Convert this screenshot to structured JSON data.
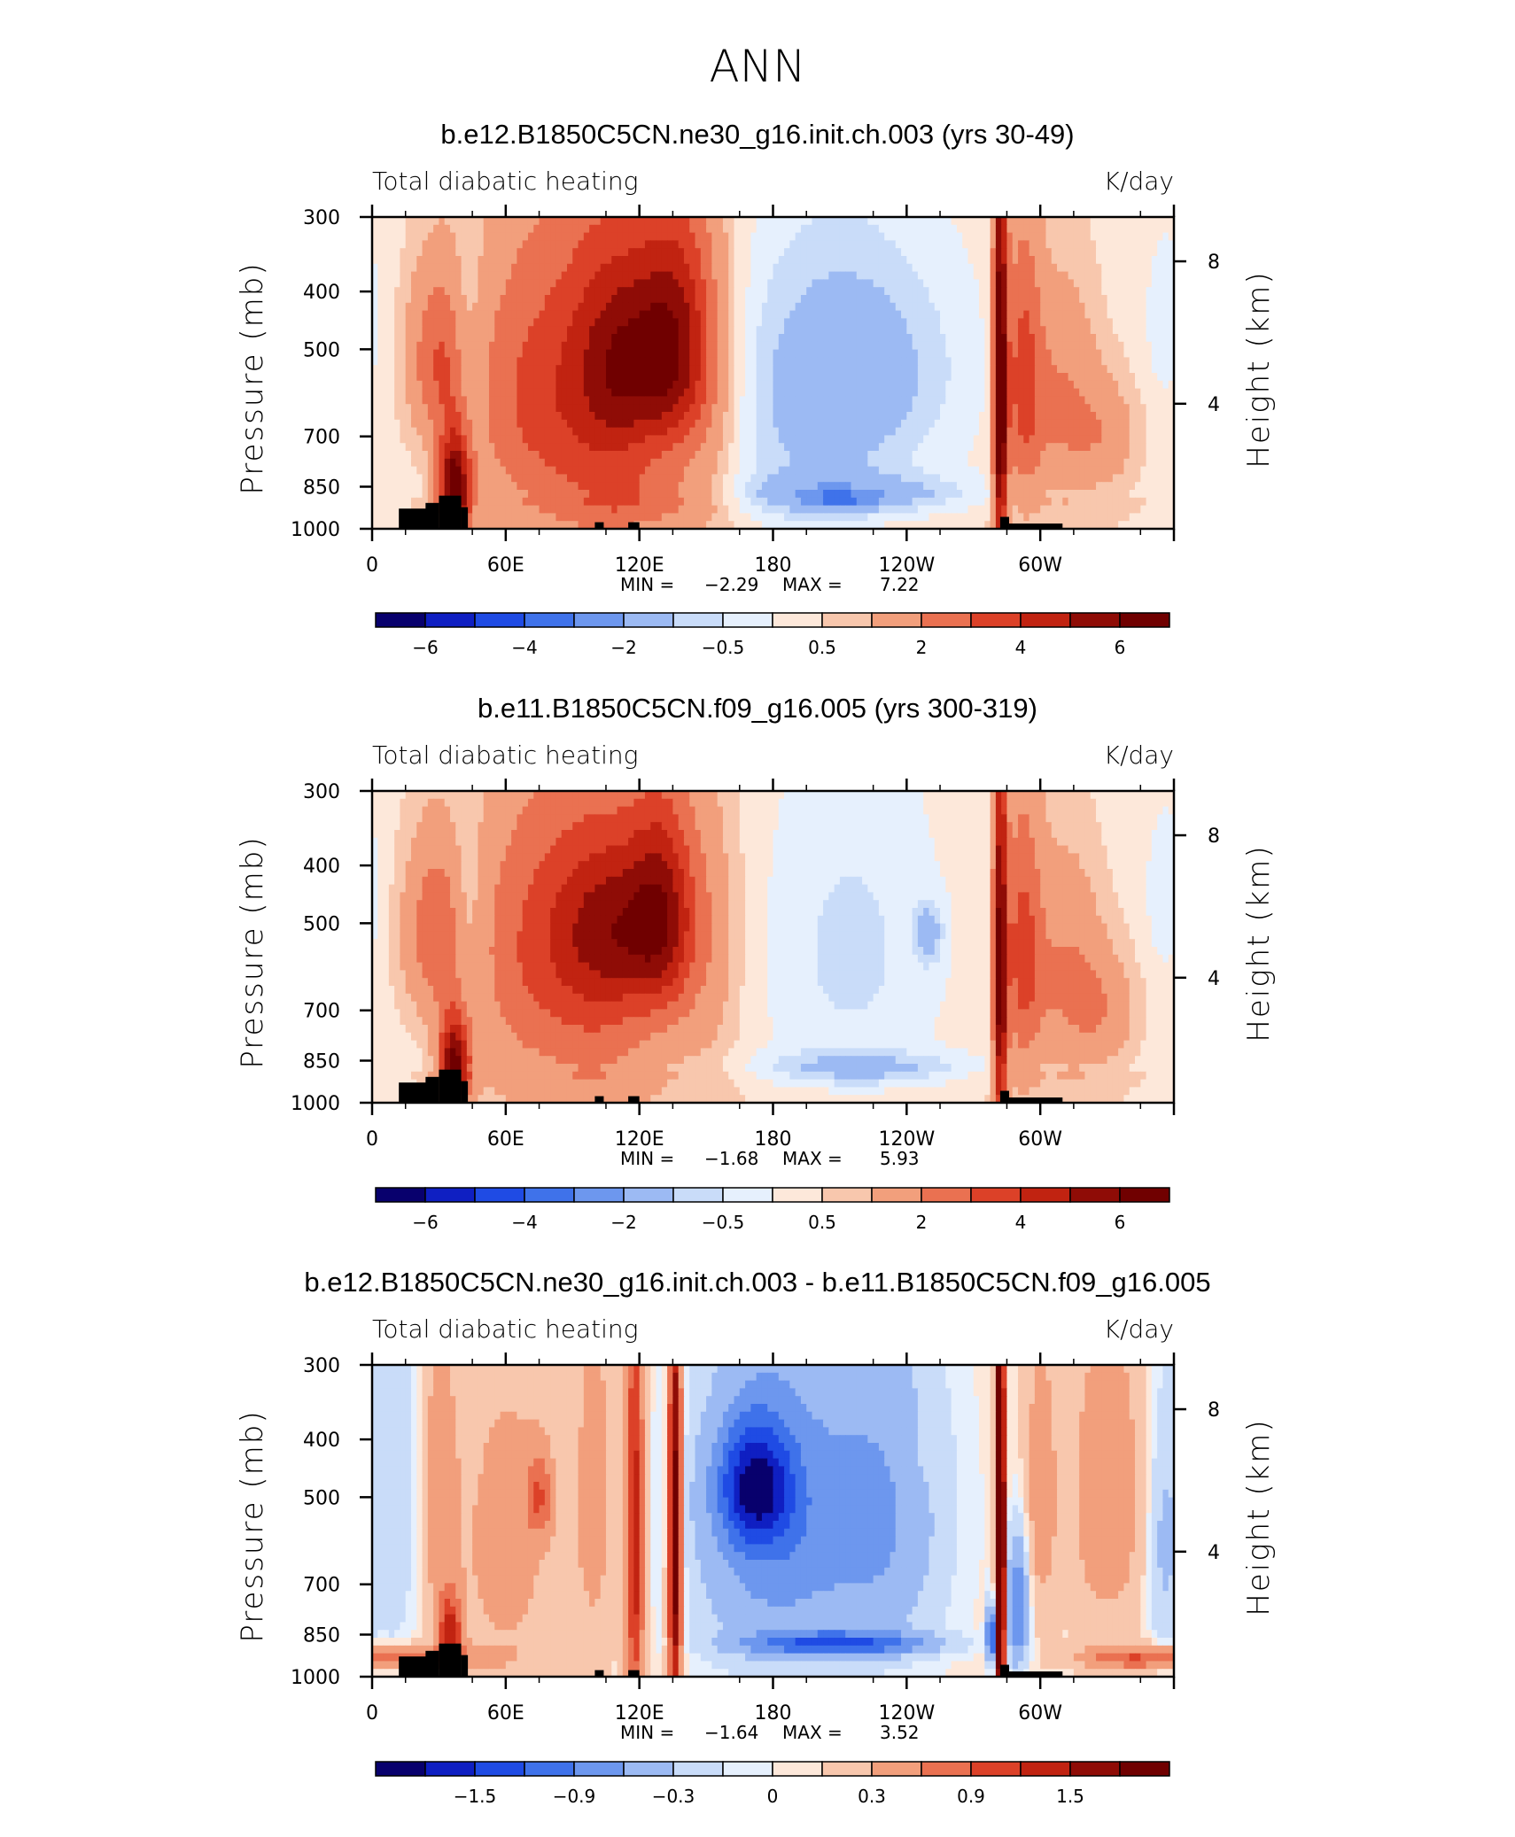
{
  "figure_title": "ANN",
  "chart_data": [
    {
      "type": "heatmap",
      "title": "b.e12.B1850C5CN.ne30_g16.init.ch.003 (yrs 30-49)",
      "left_label": "Total diabatic heating",
      "right_label": "K/day",
      "ylabel": "Pressure (mb)",
      "ylabel_right": "Height (km)",
      "x_ticks": [
        "0",
        "60E",
        "120E",
        "180",
        "120W",
        "60W"
      ],
      "y_ticks": [
        "300",
        "400",
        "500",
        "700",
        "850",
        "1000"
      ],
      "y2_ticks": [
        "8",
        "4"
      ],
      "xlim": [
        0,
        360
      ],
      "ylim": [
        1000,
        300
      ],
      "min_label": "MIN =",
      "min_value": "−2.29",
      "max_label": "MAX =",
      "max_value": "7.22",
      "colorbar_labels": [
        "−6",
        "−4",
        "−2",
        "−0.5",
        "0.5",
        "2",
        "4",
        "6"
      ],
      "features": [
        {
          "lon": 30,
          "p": 520,
          "w": 14,
          "h": 180,
          "v": 2.5
        },
        {
          "lon": 37,
          "p": 860,
          "w": 7,
          "h": 180,
          "v": 6.5
        },
        {
          "lon": 43,
          "p": 500,
          "w": 7,
          "h": 220,
          "v": -1.0
        },
        {
          "lon": 70,
          "p": 600,
          "w": 28,
          "h": 360,
          "v": 2.6
        },
        {
          "lon": 105,
          "p": 600,
          "w": 26,
          "h": 420,
          "v": 2.7
        },
        {
          "lon": 118,
          "p": 520,
          "w": 24,
          "h": 210,
          "v": 3.4
        },
        {
          "lon": 136,
          "p": 480,
          "w": 16,
          "h": 230,
          "v": 3.2
        },
        {
          "lon": 125,
          "p": 900,
          "w": 30,
          "h": 100,
          "v": 1.3
        },
        {
          "lon": 150,
          "p": 560,
          "w": 16,
          "h": 400,
          "v": 1.2
        },
        {
          "lon": 220,
          "p": 540,
          "w": 44,
          "h": 230,
          "v": -1.5
        },
        {
          "lon": 215,
          "p": 880,
          "w": 52,
          "h": 70,
          "v": -1.7
        },
        {
          "lon": 210,
          "p": 890,
          "w": 14,
          "h": 18,
          "v": -2.3
        },
        {
          "lon": 196,
          "p": 700,
          "w": 40,
          "h": 400,
          "v": -0.9
        },
        {
          "lon": 282,
          "p": 600,
          "w": 3,
          "h": 500,
          "v": 7.0
        },
        {
          "lon": 292,
          "p": 560,
          "w": 9,
          "h": 300,
          "v": 3.0
        },
        {
          "lon": 310,
          "p": 620,
          "w": 16,
          "h": 260,
          "v": 1.8
        },
        {
          "lon": 330,
          "p": 700,
          "w": 14,
          "h": 150,
          "v": 1.3
        },
        {
          "lon": 356,
          "p": 450,
          "w": 8,
          "h": 130,
          "v": -0.7
        }
      ]
    },
    {
      "type": "heatmap",
      "title": "b.e11.B1850C5CN.f09_g16.005 (yrs 300-319)",
      "left_label": "Total diabatic heating",
      "right_label": "K/day",
      "ylabel": "Pressure (mb)",
      "ylabel_right": "Height (km)",
      "x_ticks": [
        "0",
        "60E",
        "120E",
        "180",
        "120W",
        "60W"
      ],
      "y_ticks": [
        "300",
        "400",
        "500",
        "700",
        "850",
        "1000"
      ],
      "y2_ticks": [
        "8",
        "4"
      ],
      "xlim": [
        0,
        360
      ],
      "ylim": [
        1000,
        300
      ],
      "min_label": "MIN =",
      "min_value": "−1.68",
      "max_label": "MAX =",
      "max_value": "5.93",
      "colorbar_labels": [
        "−6",
        "−4",
        "−2",
        "−0.5",
        "0.5",
        "2",
        "4",
        "6"
      ],
      "features": [
        {
          "lon": 28,
          "p": 520,
          "w": 14,
          "h": 180,
          "v": 2.4
        },
        {
          "lon": 37,
          "p": 860,
          "w": 7,
          "h": 160,
          "v": 5.9
        },
        {
          "lon": 43,
          "p": 500,
          "w": 7,
          "h": 220,
          "v": -0.9
        },
        {
          "lon": 70,
          "p": 560,
          "w": 28,
          "h": 360,
          "v": 2.3
        },
        {
          "lon": 112,
          "p": 500,
          "w": 30,
          "h": 170,
          "v": 3.2
        },
        {
          "lon": 130,
          "p": 480,
          "w": 14,
          "h": 220,
          "v": 3.0
        },
        {
          "lon": 105,
          "p": 620,
          "w": 26,
          "h": 400,
          "v": 2.2
        },
        {
          "lon": 150,
          "p": 560,
          "w": 16,
          "h": 400,
          "v": 1.0
        },
        {
          "lon": 215,
          "p": 560,
          "w": 38,
          "h": 330,
          "v": -0.9
        },
        {
          "lon": 250,
          "p": 520,
          "w": 6,
          "h": 60,
          "v": -1.5
        },
        {
          "lon": 220,
          "p": 880,
          "w": 46,
          "h": 60,
          "v": -1.4
        },
        {
          "lon": 282,
          "p": 620,
          "w": 3,
          "h": 500,
          "v": 5.9
        },
        {
          "lon": 292,
          "p": 560,
          "w": 9,
          "h": 300,
          "v": 3.0
        },
        {
          "lon": 312,
          "p": 620,
          "w": 16,
          "h": 260,
          "v": 1.8
        },
        {
          "lon": 330,
          "p": 700,
          "w": 14,
          "h": 150,
          "v": 1.3
        },
        {
          "lon": 356,
          "p": 450,
          "w": 8,
          "h": 130,
          "v": -0.7
        }
      ]
    },
    {
      "type": "heatmap",
      "title": "b.e12.B1850C5CN.ne30_g16.init.ch.003 - b.e11.B1850C5CN.f09_g16.005",
      "left_label": "Total diabatic heating",
      "right_label": "K/day",
      "ylabel": "Pressure (mb)",
      "ylabel_right": "Height (km)",
      "x_ticks": [
        "0",
        "60E",
        "120E",
        "180",
        "120W",
        "60W"
      ],
      "y_ticks": [
        "300",
        "400",
        "500",
        "700",
        "850",
        "1000"
      ],
      "y2_ticks": [
        "8",
        "4"
      ],
      "xlim": [
        0,
        360
      ],
      "ylim": [
        1000,
        300
      ],
      "min_label": "MIN =",
      "min_value": "−1.64",
      "max_label": "MAX =",
      "max_value": "3.52",
      "colorbar_labels": [
        "−1.5",
        "−0.9",
        "−0.3",
        "0",
        "0.3",
        "0.9",
        "1.5"
      ],
      "features": [
        {
          "lon": 10,
          "p": 500,
          "w": 10,
          "h": 400,
          "v": -0.35
        },
        {
          "lon": 30,
          "p": 500,
          "w": 8,
          "h": 300,
          "v": 0.4
        },
        {
          "lon": 35,
          "p": 850,
          "w": 5,
          "h": 120,
          "v": 1.3
        },
        {
          "lon": 60,
          "p": 600,
          "w": 24,
          "h": 420,
          "v": 0.35
        },
        {
          "lon": 75,
          "p": 500,
          "w": 6,
          "h": 80,
          "v": 0.7
        },
        {
          "lon": 100,
          "p": 500,
          "w": 10,
          "h": 400,
          "v": 0.35
        },
        {
          "lon": 118,
          "p": 600,
          "w": 4,
          "h": 500,
          "v": 1.4
        },
        {
          "lon": 136,
          "p": 600,
          "w": 3,
          "h": 500,
          "v": 2.2
        },
        {
          "lon": 180,
          "p": 560,
          "w": 36,
          "h": 360,
          "v": -0.85
        },
        {
          "lon": 172,
          "p": 480,
          "w": 16,
          "h": 110,
          "v": -1.4
        },
        {
          "lon": 210,
          "p": 880,
          "w": 40,
          "h": 40,
          "v": -1.1
        },
        {
          "lon": 230,
          "p": 540,
          "w": 28,
          "h": 350,
          "v": -0.6
        },
        {
          "lon": 248,
          "p": 420,
          "w": 5,
          "h": 60,
          "v": 0.1
        },
        {
          "lon": 282,
          "p": 620,
          "w": 2,
          "h": 500,
          "v": 3.5
        },
        {
          "lon": 278,
          "p": 850,
          "w": 2,
          "h": 100,
          "v": -1.6
        },
        {
          "lon": 290,
          "p": 760,
          "w": 5,
          "h": 200,
          "v": -1.0
        },
        {
          "lon": 300,
          "p": 500,
          "w": 8,
          "h": 300,
          "v": 0.4
        },
        {
          "lon": 330,
          "p": 500,
          "w": 16,
          "h": 300,
          "v": 0.5
        },
        {
          "lon": 340,
          "p": 930,
          "w": 22,
          "h": 40,
          "v": 0.7
        },
        {
          "lon": 20,
          "p": 930,
          "w": 30,
          "h": 40,
          "v": 0.7
        },
        {
          "lon": 355,
          "p": 600,
          "w": 7,
          "h": 300,
          "v": -0.4
        }
      ]
    }
  ]
}
